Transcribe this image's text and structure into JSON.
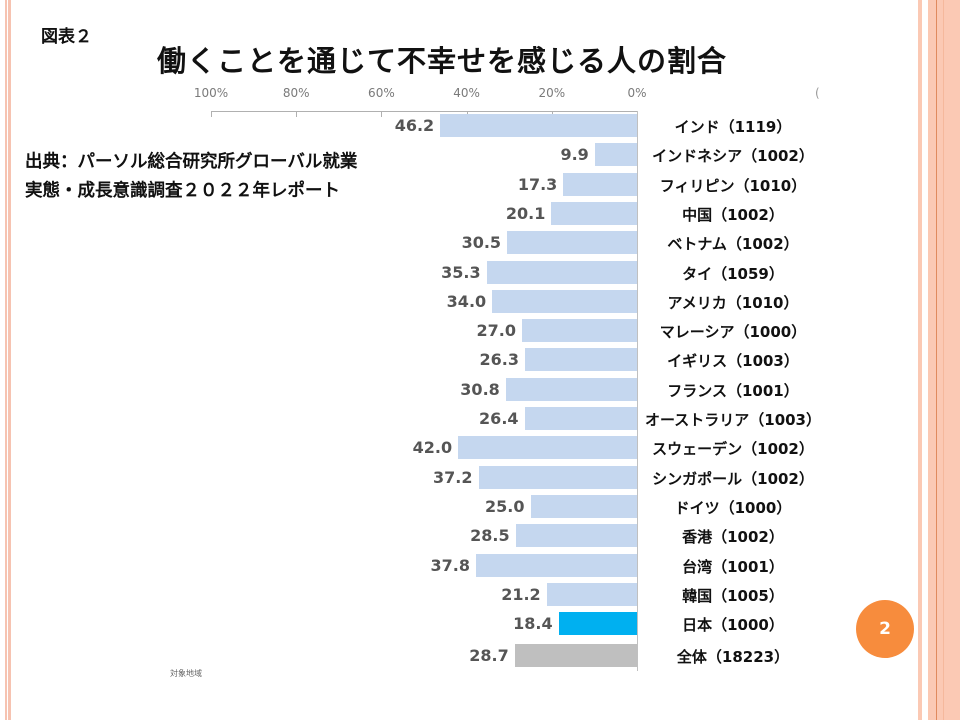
{
  "slide": {
    "figure_label": "図表２",
    "title": "働くことを通じて不幸せを感じる人の割合",
    "source_line1": "出典：パーソル総合研究所グローバル就業",
    "source_line2": "実態・成長意識調査２０２２年レポート",
    "footnote": "対象地域",
    "page_number": "2",
    "axis_stray_mark": "(",
    "colors": {
      "default_bar": "#c5d7ef",
      "japan_bar": "#00b0f0",
      "total_bar": "#bfbfbf",
      "accent": "#f78c3d",
      "stripe": "#fbc9b4"
    }
  },
  "chart_data": {
    "type": "bar",
    "orientation": "horizontal-reversed",
    "title": "働くことを通じて不幸せを感じる人の割合",
    "xlabel": "",
    "ylabel": "",
    "xlim": [
      0,
      100
    ],
    "x_ticks": [
      100,
      80,
      60,
      40,
      20,
      0
    ],
    "x_tick_labels": [
      "100%",
      "80%",
      "60%",
      "40%",
      "20%",
      "0%"
    ],
    "grid": false,
    "categories": [
      "インド（1119）",
      "インドネシア（1002）",
      "フィリピン（1010）",
      "中国（1002）",
      "ベトナム（1002）",
      "タイ（1059）",
      "アメリカ（1010）",
      "マレーシア（1000）",
      "イギリス（1003）",
      "フランス（1001）",
      "オーストラリア（1003）",
      "スウェーデン（1002）",
      "シンガポール（1002）",
      "ドイツ（1000）",
      "香港（1002）",
      "台湾（1001）",
      "韓国（1005）",
      "日本（1000）",
      "全体（18223）"
    ],
    "values": [
      46.2,
      9.9,
      17.3,
      20.1,
      30.5,
      35.3,
      34.0,
      27.0,
      26.3,
      30.8,
      26.4,
      42.0,
      37.2,
      25.0,
      28.5,
      37.8,
      21.2,
      18.4,
      28.7
    ],
    "value_labels": [
      "46.2",
      "9.9",
      "17.3",
      "20.1",
      "30.5",
      "35.3",
      "34.0",
      "27.0",
      "26.3",
      "30.8",
      "26.4",
      "42.0",
      "37.2",
      "25.0",
      "28.5",
      "37.8",
      "21.2",
      "18.4",
      "28.7"
    ],
    "highlight": {
      "日本（1000）": "japan",
      "全体（18223）": "total"
    }
  }
}
